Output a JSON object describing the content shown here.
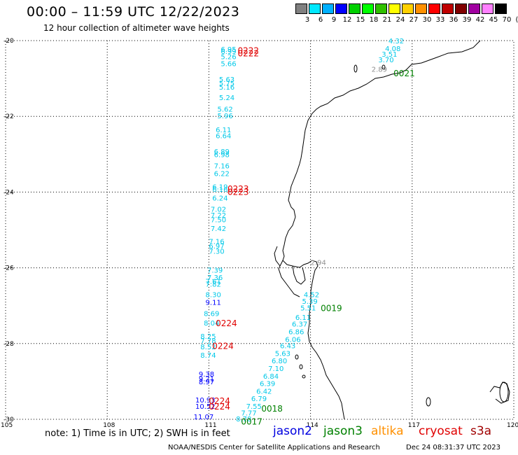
{
  "header": {
    "title": "00:00 – 11:59 UTC 12/22/2023",
    "subtitle": "12 hour collection of altimeter wave heights"
  },
  "legend": {
    "unit": "(ft)",
    "colors": [
      "#808080",
      "#00e8ff",
      "#00b0ff",
      "#0000ff",
      "#00d000",
      "#00ff00",
      "#30c000",
      "#ffff00",
      "#ffd000",
      "#ff9000",
      "#ff0000",
      "#c00000",
      "#800000",
      "#a000a0",
      "#ff80ff",
      "#000000"
    ],
    "labels": [
      "3",
      "6",
      "9",
      "12",
      "15",
      "18",
      "21",
      "24",
      "27",
      "30",
      "33",
      "36",
      "39",
      "42",
      "45",
      "70"
    ]
  },
  "map": {
    "lat_labels": [
      "-20",
      "-22",
      "-24",
      "-26",
      "-28",
      "-30"
    ],
    "lon_labels": [
      "105",
      "108",
      "111",
      "114",
      "117",
      "120"
    ],
    "lat_values": [
      -20,
      -22,
      -24,
      -26,
      -28,
      -30
    ],
    "lon_values": [
      105,
      108,
      111,
      114,
      117,
      120
    ],
    "wave_labels": [
      {
        "t": "6.95",
        "c": "#00c8e8",
        "lon": 111.35,
        "lat": -20.22
      },
      {
        "t": "6.99",
        "c": "#00c8e8",
        "lon": 111.35,
        "lat": -20.28
      },
      {
        "t": "5.26",
        "c": "#00c8e8",
        "lon": 111.35,
        "lat": -20.42
      },
      {
        "t": "5.66",
        "c": "#00c8e8",
        "lon": 111.35,
        "lat": -20.6
      },
      {
        "t": "5.63",
        "c": "#00c8e8",
        "lon": 111.3,
        "lat": -21.02
      },
      {
        "t": "5.75",
        "c": "#00c8e8",
        "lon": 111.3,
        "lat": -21.12
      },
      {
        "t": "5.16",
        "c": "#00c8e8",
        "lon": 111.3,
        "lat": -21.22
      },
      {
        "t": "5.24",
        "c": "#00c8e8",
        "lon": 111.3,
        "lat": -21.5
      },
      {
        "t": "5.62",
        "c": "#00c8e8",
        "lon": 111.25,
        "lat": -21.8
      },
      {
        "t": "5.96",
        "c": "#00c8e8",
        "lon": 111.25,
        "lat": -21.98
      },
      {
        "t": "6.11",
        "c": "#00c8e8",
        "lon": 111.2,
        "lat": -22.35
      },
      {
        "t": "6.64",
        "c": "#00c8e8",
        "lon": 111.2,
        "lat": -22.5
      },
      {
        "t": "6.89",
        "c": "#00c8e8",
        "lon": 111.15,
        "lat": -22.92
      },
      {
        "t": "6.98",
        "c": "#00c8e8",
        "lon": 111.15,
        "lat": -23.0
      },
      {
        "t": "7.16",
        "c": "#00c8e8",
        "lon": 111.15,
        "lat": -23.3
      },
      {
        "t": "6.22",
        "c": "#00c8e8",
        "lon": 111.15,
        "lat": -23.5
      },
      {
        "t": "6.19",
        "c": "#00c8e8",
        "lon": 111.1,
        "lat": -23.85
      },
      {
        "t": "6.16",
        "c": "#00c8e8",
        "lon": 111.1,
        "lat": -23.92
      },
      {
        "t": "6.24",
        "c": "#00c8e8",
        "lon": 111.1,
        "lat": -24.15
      },
      {
        "t": "7.02",
        "c": "#00c8e8",
        "lon": 111.05,
        "lat": -24.45
      },
      {
        "t": "7.22",
        "c": "#00c8e8",
        "lon": 111.05,
        "lat": -24.6
      },
      {
        "t": "7.50",
        "c": "#00c8e8",
        "lon": 111.05,
        "lat": -24.72
      },
      {
        "t": "7.42",
        "c": "#00c8e8",
        "lon": 111.05,
        "lat": -24.95
      },
      {
        "t": "7.16",
        "c": "#00c8e8",
        "lon": 111.0,
        "lat": -25.3
      },
      {
        "t": "6.97",
        "c": "#00c8e8",
        "lon": 111.0,
        "lat": -25.42
      },
      {
        "t": "7.30",
        "c": "#00c8e8",
        "lon": 111.0,
        "lat": -25.55
      },
      {
        "t": "7.39",
        "c": "#00c8e8",
        "lon": 110.95,
        "lat": -26.05
      },
      {
        "t": "7.36",
        "c": "#00c8e8",
        "lon": 110.95,
        "lat": -26.25
      },
      {
        "t": "7.61",
        "c": "#00c8e8",
        "lon": 110.9,
        "lat": -26.35
      },
      {
        "t": "7.82",
        "c": "#00c8e8",
        "lon": 110.9,
        "lat": -26.42
      },
      {
        "t": "8.30",
        "c": "#00c8e8",
        "lon": 110.9,
        "lat": -26.7
      },
      {
        "t": "9.11",
        "c": "#0000ff",
        "lon": 110.9,
        "lat": -26.9
      },
      {
        "t": "8.69",
        "c": "#00c8e8",
        "lon": 110.85,
        "lat": -27.2
      },
      {
        "t": "8.04",
        "c": "#00c8e8",
        "lon": 110.85,
        "lat": -27.45
      },
      {
        "t": "8.25",
        "c": "#00c8e8",
        "lon": 110.75,
        "lat": -27.8
      },
      {
        "t": "7.78",
        "c": "#00c8e8",
        "lon": 110.75,
        "lat": -27.92
      },
      {
        "t": "8.52",
        "c": "#00c8e8",
        "lon": 110.75,
        "lat": -28.08
      },
      {
        "t": "8.74",
        "c": "#00c8e8",
        "lon": 110.75,
        "lat": -28.3
      },
      {
        "t": "9.38",
        "c": "#0000ff",
        "lon": 110.7,
        "lat": -28.8
      },
      {
        "t": "9.21",
        "c": "#0000ff",
        "lon": 110.7,
        "lat": -28.92
      },
      {
        "t": "8.97",
        "c": "#0000ff",
        "lon": 110.7,
        "lat": -29.0
      },
      {
        "t": "10.93",
        "c": "#0000ff",
        "lon": 110.6,
        "lat": -29.48
      },
      {
        "t": "10.52",
        "c": "#0000ff",
        "lon": 110.6,
        "lat": -29.65
      },
      {
        "t": "11.07",
        "c": "#0000ff",
        "lon": 110.55,
        "lat": -29.93
      },
      {
        "t": "4.32",
        "c": "#00c8e8",
        "lon": 116.3,
        "lat": -20.0
      },
      {
        "t": "4.08",
        "c": "#00c8e8",
        "lon": 116.2,
        "lat": -20.2
      },
      {
        "t": "3.51",
        "c": "#00c8e8",
        "lon": 116.1,
        "lat": -20.35
      },
      {
        "t": "3.70",
        "c": "#00c8e8",
        "lon": 116.0,
        "lat": -20.5
      },
      {
        "t": "2.89",
        "c": "#909090",
        "lon": 115.8,
        "lat": -20.75
      },
      {
        "t": "2.94",
        "c": "#909090",
        "lon": 114.0,
        "lat": -25.85
      },
      {
        "t": "4.52",
        "c": "#00c8e8",
        "lon": 113.8,
        "lat": -26.7
      },
      {
        "t": "5.39",
        "c": "#00c8e8",
        "lon": 113.75,
        "lat": -26.88
      },
      {
        "t": "5.51",
        "c": "#00c8e8",
        "lon": 113.7,
        "lat": -27.05
      },
      {
        "t": "6.11",
        "c": "#00c8e8",
        "lon": 113.55,
        "lat": -27.3
      },
      {
        "t": "6.37",
        "c": "#00c8e8",
        "lon": 113.45,
        "lat": -27.48
      },
      {
        "t": "6.86",
        "c": "#00c8e8",
        "lon": 113.35,
        "lat": -27.68
      },
      {
        "t": "6.06",
        "c": "#00c8e8",
        "lon": 113.25,
        "lat": -27.88
      },
      {
        "t": "6.43",
        "c": "#00c8e8",
        "lon": 113.1,
        "lat": -28.05
      },
      {
        "t": "5.63",
        "c": "#00c8e8",
        "lon": 112.95,
        "lat": -28.25
      },
      {
        "t": "6.80",
        "c": "#00c8e8",
        "lon": 112.85,
        "lat": -28.45
      },
      {
        "t": "7.10",
        "c": "#00c8e8",
        "lon": 112.75,
        "lat": -28.65
      },
      {
        "t": "6.84",
        "c": "#00c8e8",
        "lon": 112.6,
        "lat": -28.85
      },
      {
        "t": "6.39",
        "c": "#00c8e8",
        "lon": 112.5,
        "lat": -29.05
      },
      {
        "t": "6.42",
        "c": "#00c8e8",
        "lon": 112.4,
        "lat": -29.25
      },
      {
        "t": "6.79",
        "c": "#00c8e8",
        "lon": 112.25,
        "lat": -29.45
      },
      {
        "t": "7.55",
        "c": "#00c8e8",
        "lon": 112.1,
        "lat": -29.65
      },
      {
        "t": "7.77",
        "c": "#00c8e8",
        "lon": 111.95,
        "lat": -29.82
      },
      {
        "t": "8.78",
        "c": "#00c8e8",
        "lon": 111.8,
        "lat": -29.98
      }
    ],
    "pass_labels": [
      {
        "t": "0222",
        "c": "#e00000",
        "lon": 111.85,
        "lat": -20.25
      },
      {
        "t": "0222",
        "c": "#e00000",
        "lon": 111.85,
        "lat": -20.32
      },
      {
        "t": "0223",
        "c": "#e00000",
        "lon": 111.55,
        "lat": -23.9
      },
      {
        "t": "0223",
        "c": "#e00000",
        "lon": 111.55,
        "lat": -23.98
      },
      {
        "t": "0224",
        "c": "#e00000",
        "lon": 111.2,
        "lat": -27.45
      },
      {
        "t": "0224",
        "c": "#e00000",
        "lon": 111.1,
        "lat": -28.05
      },
      {
        "t": "0224",
        "c": "#e00000",
        "lon": 111.0,
        "lat": -29.5
      },
      {
        "t": "0224",
        "c": "#e00000",
        "lon": 111.0,
        "lat": -29.65
      },
      {
        "t": "0021",
        "c": "#008000",
        "lon": 116.45,
        "lat": -20.85
      },
      {
        "t": "0019",
        "c": "#008000",
        "lon": 114.3,
        "lat": -27.05
      },
      {
        "t": "0018",
        "c": "#008000",
        "lon": 112.55,
        "lat": -29.7
      },
      {
        "t": "0017",
        "c": "#008000",
        "lon": 111.95,
        "lat": -30.05
      }
    ]
  },
  "footer": {
    "note": "note: 1) Time is in UTC; 2) SWH is in feet",
    "satellites": [
      {
        "name": "jason2",
        "color": "#0000e0"
      },
      {
        "name": "jason3",
        "color": "#008000"
      },
      {
        "name": "altika",
        "color": "#ff9000"
      },
      {
        "name": "cryosat",
        "color": "#e00000"
      },
      {
        "name": "s3a",
        "color": "#a00000"
      }
    ],
    "credit": "NOAA/NESDIS Center for Satellite Applications and Research",
    "timestamp": "Dec 24 08:31:37 UTC 2023"
  }
}
